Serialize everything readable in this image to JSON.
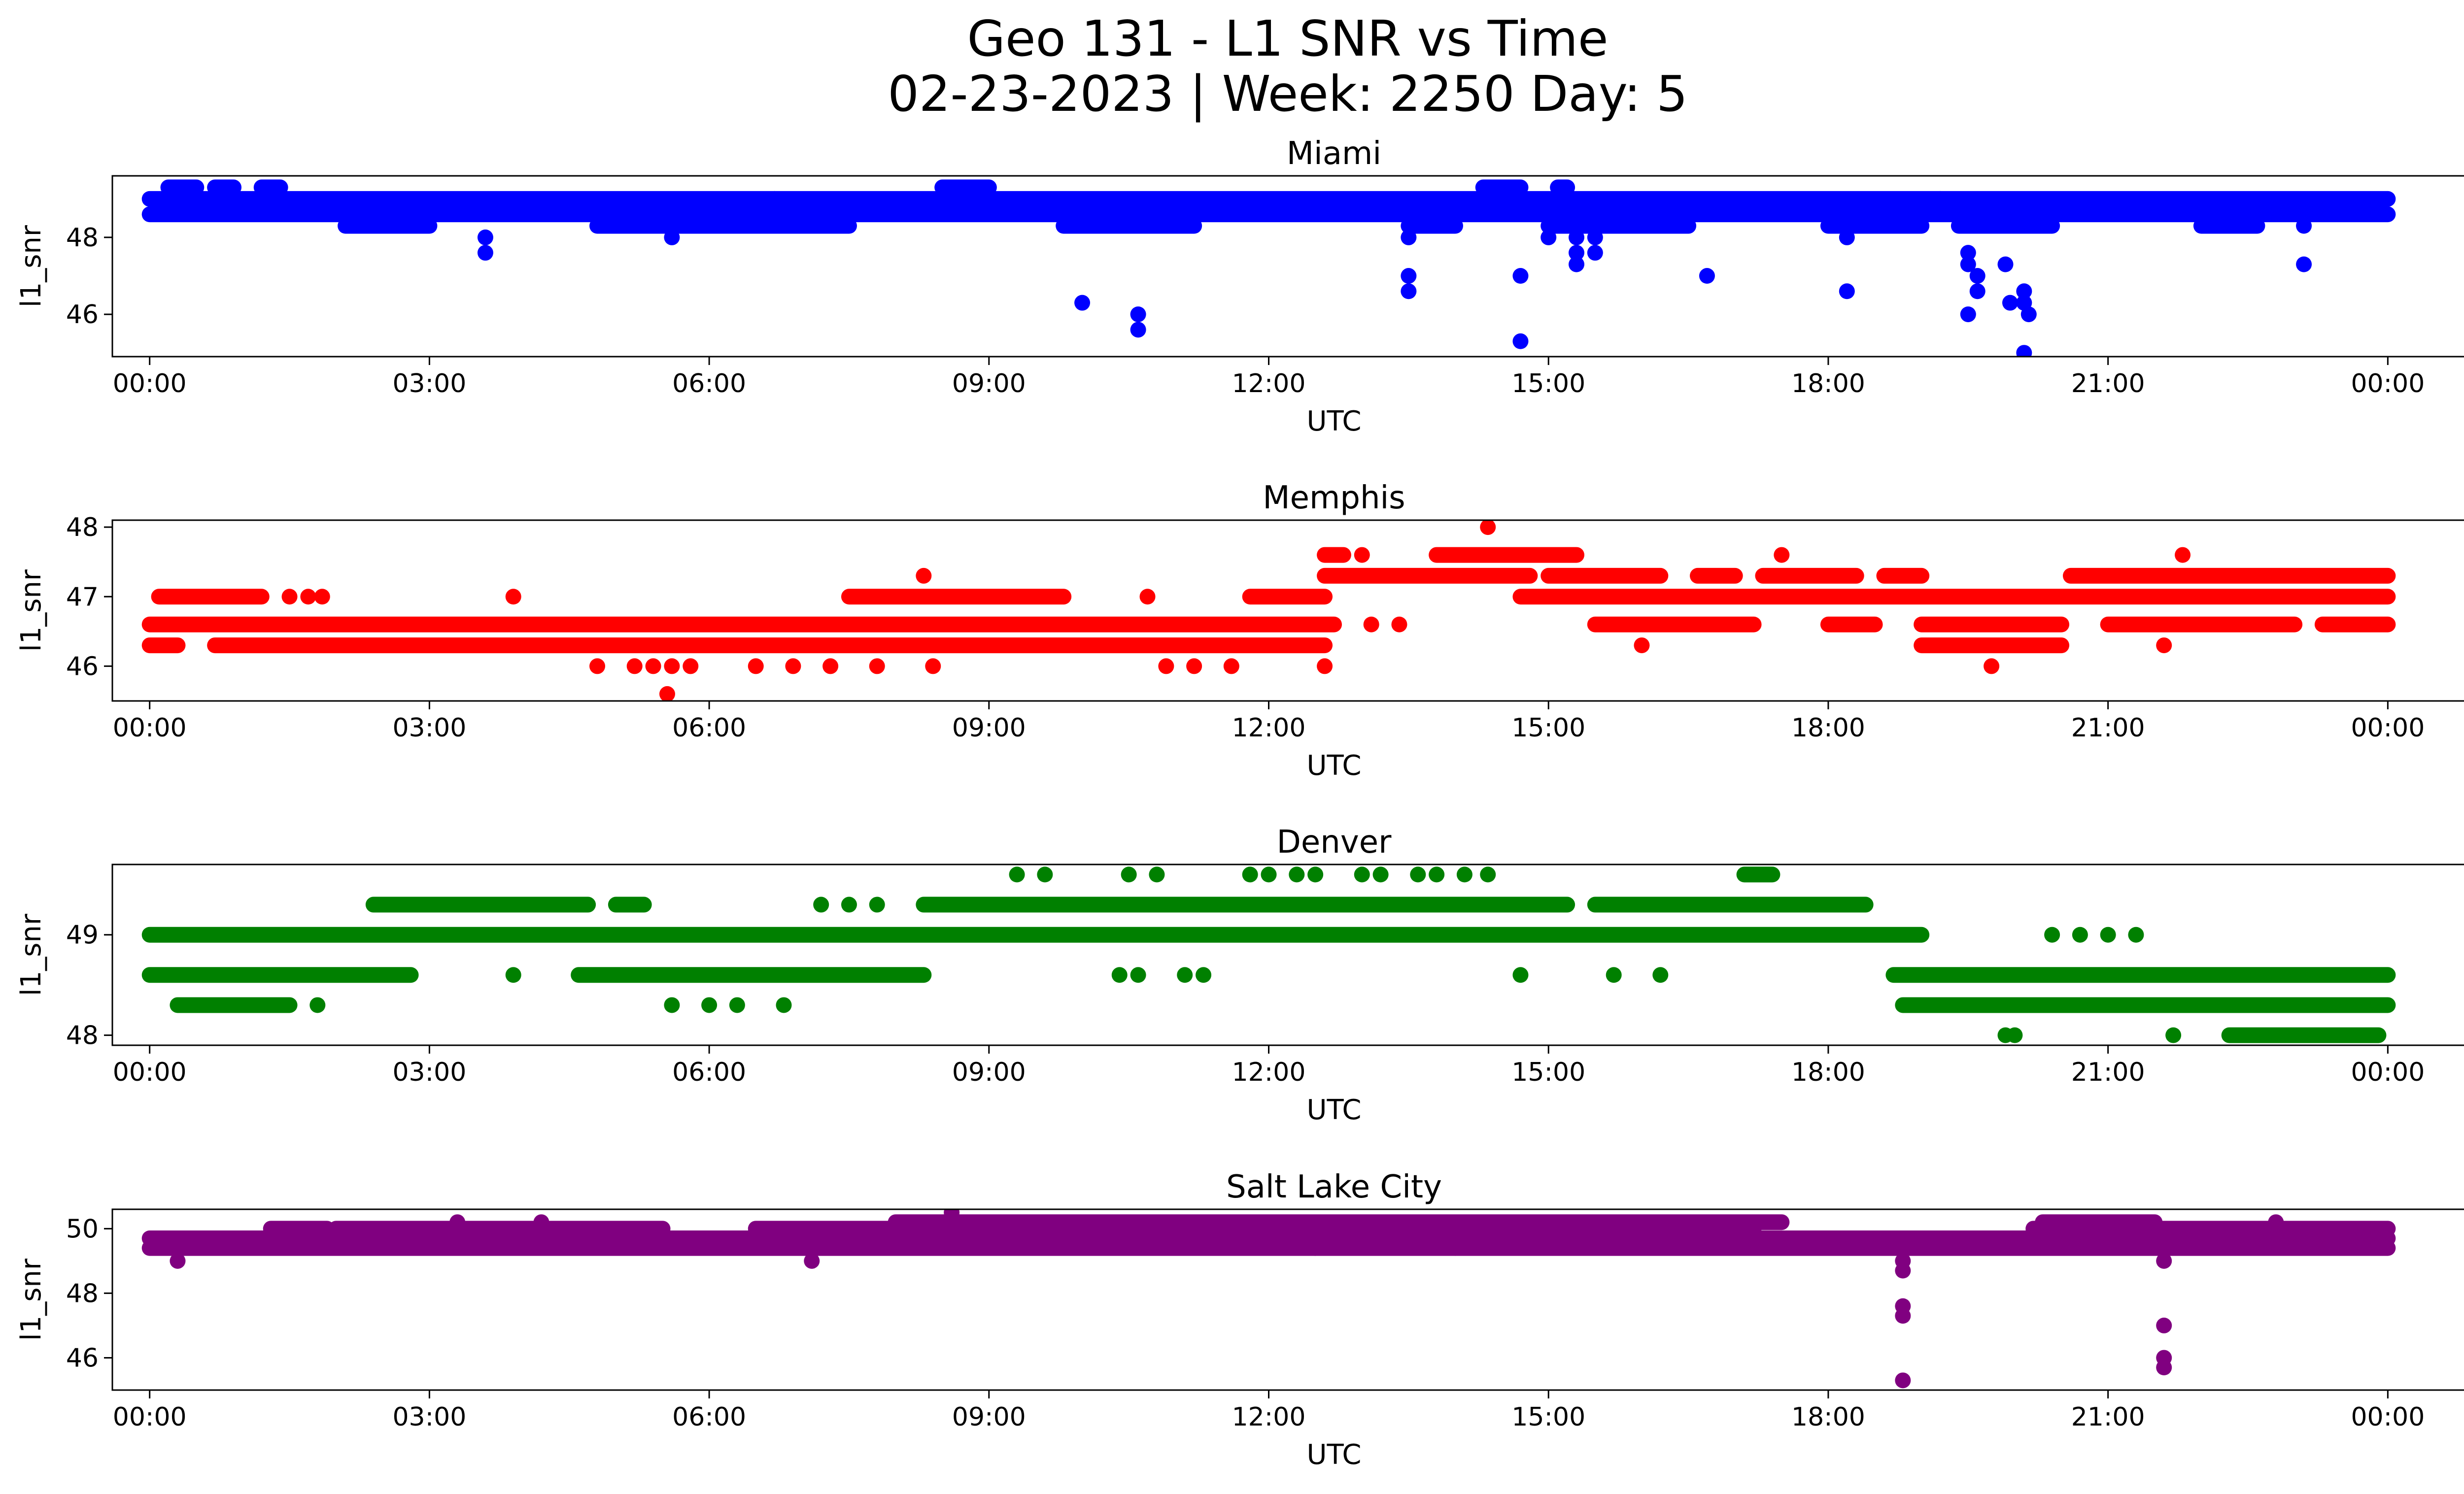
{
  "figure": {
    "title_line1": "Geo 131 - L1 SNR vs Time",
    "title_line2": "02-23-2023 | Week: 2250 Day: 5"
  },
  "chart_data": [
    {
      "type": "scatter",
      "title": "Miami",
      "xlabel": "UTC",
      "ylabel": "l1_snr",
      "color": "#0000ff",
      "xlim": [
        -0.4,
        25.8
      ],
      "ylim": [
        44.9,
        49.6
      ],
      "xticks": [
        "00:00",
        "03:00",
        "06:00",
        "09:00",
        "12:00",
        "15:00",
        "18:00",
        "21:00",
        "00:00"
      ],
      "yticks": [
        46,
        48
      ],
      "bands": [
        {
          "y": 49.0,
          "segments": [
            [
              0.0,
              24.0
            ]
          ]
        },
        {
          "y": 48.6,
          "segments": [
            [
              0.0,
              24.0
            ]
          ]
        },
        {
          "y": 48.3,
          "segments": [
            [
              2.1,
              3.0
            ],
            [
              4.8,
              7.5
            ],
            [
              9.8,
              11.2
            ],
            [
              13.5,
              14.0
            ],
            [
              15.0,
              16.5
            ],
            [
              18.0,
              19.0
            ],
            [
              19.4,
              20.4
            ],
            [
              22.0,
              22.6
            ]
          ]
        },
        {
          "y": 49.3,
          "segments": [
            [
              0.2,
              0.5
            ],
            [
              0.7,
              0.9
            ],
            [
              1.2,
              1.4
            ],
            [
              8.5,
              9.0
            ],
            [
              14.3,
              14.7
            ],
            [
              15.1,
              15.2
            ]
          ]
        }
      ],
      "points": [
        [
          3.6,
          48.0
        ],
        [
          3.6,
          47.6
        ],
        [
          5.6,
          48.0
        ],
        [
          6.7,
          49.0
        ],
        [
          10.0,
          46.3
        ],
        [
          10.6,
          46.0
        ],
        [
          10.6,
          45.6
        ],
        [
          13.5,
          48.0
        ],
        [
          13.5,
          47.0
        ],
        [
          13.5,
          46.6
        ],
        [
          14.7,
          47.0
        ],
        [
          14.7,
          45.3
        ],
        [
          15.0,
          48.0
        ],
        [
          15.3,
          48.0
        ],
        [
          15.3,
          47.6
        ],
        [
          15.3,
          47.3
        ],
        [
          15.5,
          48.0
        ],
        [
          15.5,
          47.6
        ],
        [
          16.7,
          47.0
        ],
        [
          18.2,
          48.0
        ],
        [
          18.2,
          46.6
        ],
        [
          19.2,
          49.0
        ],
        [
          19.5,
          47.6
        ],
        [
          19.5,
          47.3
        ],
        [
          19.5,
          46.0
        ],
        [
          19.6,
          47.0
        ],
        [
          19.6,
          46.6
        ],
        [
          19.9,
          47.3
        ],
        [
          19.95,
          46.3
        ],
        [
          20.1,
          46.6
        ],
        [
          20.1,
          46.3
        ],
        [
          20.15,
          46.0
        ],
        [
          20.1,
          45.0
        ],
        [
          23.1,
          48.3
        ],
        [
          23.1,
          47.3
        ]
      ]
    },
    {
      "type": "scatter",
      "title": "Memphis",
      "xlabel": "UTC",
      "ylabel": "l1_snr",
      "color": "#ff0000",
      "xlim": [
        -0.4,
        25.8
      ],
      "ylim": [
        45.5,
        48.1
      ],
      "xticks": [
        "00:00",
        "03:00",
        "06:00",
        "09:00",
        "12:00",
        "15:00",
        "18:00",
        "21:00",
        "00:00"
      ],
      "yticks": [
        46,
        47,
        48
      ],
      "bands": [
        {
          "y": 46.6,
          "segments": [
            [
              0.0,
              12.7
            ],
            [
              15.5,
              17.2
            ],
            [
              18.0,
              18.5
            ],
            [
              19.0,
              20.5
            ],
            [
              21.0,
              23.0
            ],
            [
              23.3,
              24.0
            ]
          ]
        },
        {
          "y": 46.3,
          "segments": [
            [
              0.0,
              0.3
            ],
            [
              0.7,
              12.6
            ],
            [
              19.0,
              20.5
            ]
          ]
        },
        {
          "y": 47.0,
          "segments": [
            [
              0.1,
              1.2
            ],
            [
              7.5,
              9.8
            ],
            [
              11.8,
              12.6
            ],
            [
              14.7,
              24.0
            ]
          ]
        },
        {
          "y": 47.3,
          "segments": [
            [
              12.6,
              14.8
            ],
            [
              15.0,
              16.2
            ],
            [
              16.6,
              17.0
            ],
            [
              17.3,
              18.3
            ],
            [
              18.6,
              19.0
            ],
            [
              20.6,
              24.0
            ]
          ]
        },
        {
          "y": 47.6,
          "segments": [
            [
              12.6,
              12.8
            ],
            [
              13.8,
              15.3
            ]
          ]
        }
      ],
      "points": [
        [
          1.5,
          47.0
        ],
        [
          1.7,
          47.0
        ],
        [
          1.85,
          47.0
        ],
        [
          3.9,
          47.0
        ],
        [
          4.8,
          46.0
        ],
        [
          5.2,
          46.0
        ],
        [
          5.4,
          46.0
        ],
        [
          5.6,
          46.0
        ],
        [
          5.8,
          46.0
        ],
        [
          5.55,
          45.6
        ],
        [
          6.5,
          46.0
        ],
        [
          6.9,
          46.0
        ],
        [
          7.3,
          46.0
        ],
        [
          7.8,
          46.0
        ],
        [
          8.4,
          46.0
        ],
        [
          8.3,
          47.3
        ],
        [
          10.7,
          47.0
        ],
        [
          10.9,
          46.0
        ],
        [
          11.2,
          46.0
        ],
        [
          11.6,
          46.0
        ],
        [
          12.6,
          46.0
        ],
        [
          13.0,
          47.6
        ],
        [
          13.1,
          46.6
        ],
        [
          13.4,
          46.6
        ],
        [
          14.35,
          48.0
        ],
        [
          16.0,
          46.3
        ],
        [
          17.5,
          47.6
        ],
        [
          19.75,
          46.0
        ],
        [
          21.6,
          46.3
        ],
        [
          21.8,
          47.6
        ]
      ]
    },
    {
      "type": "scatter",
      "title": "Denver",
      "xlabel": "UTC",
      "ylabel": "l1_snr",
      "color": "#008000",
      "xlim": [
        -0.4,
        25.8
      ],
      "ylim": [
        47.9,
        49.7
      ],
      "xticks": [
        "00:00",
        "03:00",
        "06:00",
        "09:00",
        "12:00",
        "15:00",
        "18:00",
        "21:00",
        "00:00"
      ],
      "yticks": [
        48,
        49
      ],
      "bands": [
        {
          "y": 49.0,
          "segments": [
            [
              0.0,
              19.0
            ]
          ]
        },
        {
          "y": 49.3,
          "segments": [
            [
              2.4,
              4.7
            ],
            [
              5.0,
              5.3
            ],
            [
              8.3,
              15.2
            ],
            [
              15.5,
              18.4
            ]
          ]
        },
        {
          "y": 48.6,
          "segments": [
            [
              0.0,
              2.8
            ],
            [
              4.6,
              8.3
            ],
            [
              18.7,
              24.0
            ]
          ]
        },
        {
          "y": 48.3,
          "segments": [
            [
              0.3,
              1.5
            ],
            [
              18.8,
              24.0
            ]
          ]
        },
        {
          "y": 48.0,
          "segments": [
            [
              22.3,
              23.9
            ]
          ]
        },
        {
          "y": 49.6,
          "segments": [
            [
              17.1,
              17.4
            ]
          ]
        }
      ],
      "points": [
        [
          9.3,
          49.6
        ],
        [
          9.6,
          49.6
        ],
        [
          10.5,
          49.6
        ],
        [
          10.8,
          49.6
        ],
        [
          11.8,
          49.6
        ],
        [
          12.0,
          49.6
        ],
        [
          12.3,
          49.6
        ],
        [
          12.5,
          49.6
        ],
        [
          13.0,
          49.6
        ],
        [
          13.2,
          49.6
        ],
        [
          13.6,
          49.6
        ],
        [
          13.8,
          49.6
        ],
        [
          14.1,
          49.6
        ],
        [
          14.35,
          49.6
        ],
        [
          1.8,
          48.3
        ],
        [
          5.6,
          48.3
        ],
        [
          6.0,
          48.3
        ],
        [
          6.3,
          48.3
        ],
        [
          6.8,
          48.3
        ],
        [
          3.9,
          48.6
        ],
        [
          10.4,
          48.6
        ],
        [
          10.6,
          48.6
        ],
        [
          11.1,
          48.6
        ],
        [
          11.3,
          48.6
        ],
        [
          14.7,
          48.6
        ],
        [
          15.7,
          48.6
        ],
        [
          16.2,
          48.6
        ],
        [
          7.2,
          49.3
        ],
        [
          7.5,
          49.3
        ],
        [
          7.8,
          49.3
        ],
        [
          19.9,
          48.0
        ],
        [
          20.0,
          48.0
        ],
        [
          21.7,
          48.0
        ],
        [
          20.4,
          49.0
        ],
        [
          20.7,
          49.0
        ],
        [
          21.0,
          49.0
        ],
        [
          21.3,
          49.0
        ]
      ]
    },
    {
      "type": "scatter",
      "title": "Salt Lake City",
      "xlabel": "UTC",
      "ylabel": "l1_snr",
      "color": "#800080",
      "xlim": [
        -0.4,
        25.8
      ],
      "ylim": [
        45.0,
        50.6
      ],
      "xticks": [
        "00:00",
        "03:00",
        "06:00",
        "09:00",
        "12:00",
        "15:00",
        "18:00",
        "21:00",
        "00:00"
      ],
      "yticks": [
        46,
        48,
        50
      ],
      "bands": [
        {
          "y": 49.4,
          "segments": [
            [
              0.0,
              24.0
            ]
          ]
        },
        {
          "y": 49.7,
          "segments": [
            [
              0.0,
              24.0
            ]
          ]
        },
        {
          "y": 50.0,
          "segments": [
            [
              1.3,
              1.9
            ],
            [
              2.0,
              5.5
            ],
            [
              6.5,
              17.2
            ],
            [
              20.2,
              24.0
            ]
          ]
        },
        {
          "y": 50.2,
          "segments": [
            [
              8.0,
              17.5
            ],
            [
              20.3,
              21.5
            ]
          ]
        }
      ],
      "points": [
        [
          8.6,
          50.5
        ],
        [
          18.8,
          49.0
        ],
        [
          18.8,
          48.7
        ],
        [
          18.8,
          47.6
        ],
        [
          18.8,
          47.3
        ],
        [
          18.8,
          45.3
        ],
        [
          21.6,
          49.0
        ],
        [
          21.6,
          47.0
        ],
        [
          21.6,
          46.0
        ],
        [
          21.6,
          45.7
        ],
        [
          0.3,
          49.0
        ],
        [
          7.1,
          49.0
        ],
        [
          3.3,
          50.2
        ],
        [
          4.2,
          50.2
        ],
        [
          12.5,
          49.4
        ],
        [
          14.0,
          49.4
        ],
        [
          22.8,
          50.2
        ]
      ]
    }
  ]
}
